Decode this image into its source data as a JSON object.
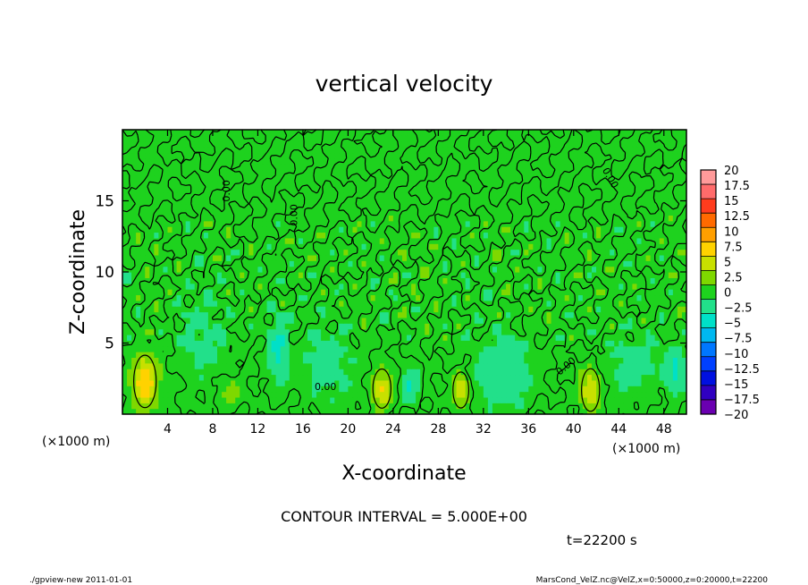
{
  "chart_data": {
    "type": "heatmap",
    "title": "vertical velocity",
    "xlabel": "X-coordinate",
    "ylabel": "Z-coordinate",
    "x_unit_left": "(×1000 m)",
    "x_unit_right": "(×1000 m)",
    "xlim": [
      0,
      50
    ],
    "ylim": [
      0,
      20
    ],
    "x_ticks": [
      {
        "v": 4,
        "label": "4"
      },
      {
        "v": 8,
        "label": "8"
      },
      {
        "v": 12,
        "label": "12"
      },
      {
        "v": 16,
        "label": "16"
      },
      {
        "v": 20,
        "label": "20"
      },
      {
        "v": 24,
        "label": "24"
      },
      {
        "v": 28,
        "label": "28"
      },
      {
        "v": 32,
        "label": "32"
      },
      {
        "v": 36,
        "label": "36"
      },
      {
        "v": 40,
        "label": "40"
      },
      {
        "v": 44,
        "label": "44"
      },
      {
        "v": 48,
        "label": "48"
      }
    ],
    "y_ticks": [
      {
        "v": 5,
        "label": "5"
      },
      {
        "v": 10,
        "label": "10"
      },
      {
        "v": 15,
        "label": "15"
      }
    ],
    "colorbar": {
      "levels": [
        "20",
        "17.5",
        "15",
        "12.5",
        "10",
        "7.5",
        "5",
        "2.5",
        "0",
        "−2.5",
        "−5",
        "−7.5",
        "−10",
        "−12.5",
        "−15",
        "−17.5",
        "−20"
      ],
      "colors": [
        "#ff9a9a",
        "#ff6b6b",
        "#ff3c1e",
        "#ff6a00",
        "#ff9f00",
        "#ffd200",
        "#c8e000",
        "#7fd800",
        "#1ed21e",
        "#22e08a",
        "#00e0c8",
        "#00b8f0",
        "#0077ff",
        "#0040ff",
        "#0010e0",
        "#3000c0",
        "#6a00b0"
      ]
    },
    "contour_label": "0.00",
    "contour_interval": "CONTOUR INTERVAL = 5.000E+00",
    "time": "t=22200 s",
    "features": [
      {
        "x": 2.0,
        "z": 2.3,
        "w": 9,
        "sx": 1.0,
        "sz": 1.6
      },
      {
        "x": 23.0,
        "z": 1.8,
        "w": 7,
        "sx": 0.8,
        "sz": 1.2
      },
      {
        "x": 30.0,
        "z": 1.7,
        "w": 6,
        "sx": 0.7,
        "sz": 1.1
      },
      {
        "x": 41.5,
        "z": 1.7,
        "w": 7,
        "sx": 0.8,
        "sz": 1.3
      },
      {
        "x": 9.5,
        "z": 1.5,
        "w": 2.5,
        "sx": 1.2,
        "sz": 1.0
      },
      {
        "x": 13.8,
        "z": 4.5,
        "w": -5,
        "sx": 0.8,
        "sz": 2.2
      },
      {
        "x": 25.5,
        "z": 2.0,
        "w": -5,
        "sx": 0.7,
        "sz": 1.2
      },
      {
        "x": 49.0,
        "z": 3.0,
        "w": -5,
        "sx": 0.8,
        "sz": 1.6
      },
      {
        "x": 34.0,
        "z": 3.0,
        "w": -3,
        "sx": 2.5,
        "sz": 2.5
      },
      {
        "x": 7.0,
        "z": 5.5,
        "w": -2,
        "sx": 2.0,
        "sz": 3.0
      },
      {
        "x": 45.5,
        "z": 3.5,
        "w": -2.5,
        "sx": 2.2,
        "sz": 2.0
      },
      {
        "x": 18.0,
        "z": 3.5,
        "w": -2,
        "sx": 2.5,
        "sz": 2.5
      }
    ]
  },
  "footer": {
    "left": "./gpview-new   2011-01-01",
    "right": "MarsCond_VelZ.nc@VelZ,x=0:50000,z=0:20000,t=22200"
  }
}
